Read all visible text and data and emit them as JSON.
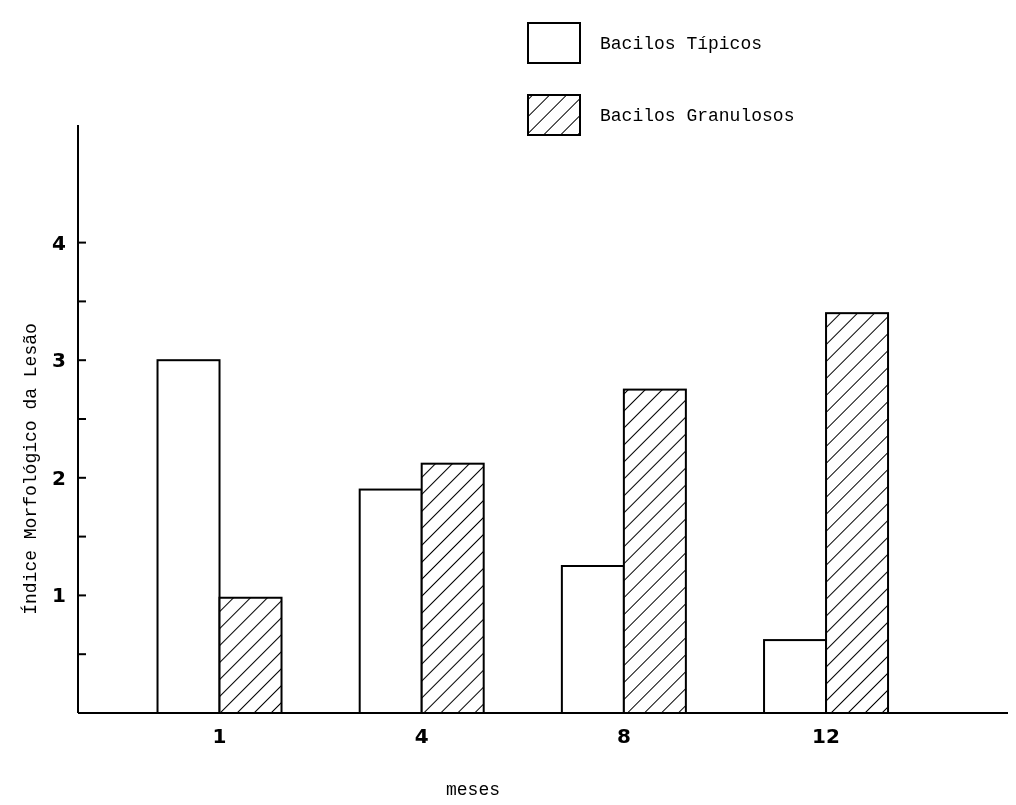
{
  "chart_data": {
    "type": "bar",
    "xlabel": "meses",
    "ylabel": "Índice Morfológico da Lesão",
    "categories": [
      "1",
      "4",
      "8",
      "12"
    ],
    "series": [
      {
        "name": "Bacilos Típicos",
        "color": "#ffffff",
        "values": [
          3.0,
          1.9,
          1.25,
          0.62
        ]
      },
      {
        "name": "Bacilos Granulosos",
        "color": "#000000",
        "values": [
          0.98,
          2.12,
          2.75,
          3.4
        ]
      }
    ],
    "ylim": [
      0,
      5
    ],
    "yticks": [
      {
        "value": 0.5,
        "label": null
      },
      1,
      {
        "value": 1.5,
        "label": null
      },
      2,
      {
        "value": 2.5,
        "label": null
      },
      3,
      {
        "value": 3.5,
        "label": null
      },
      4
    ],
    "grid": false,
    "legend": "top right"
  }
}
